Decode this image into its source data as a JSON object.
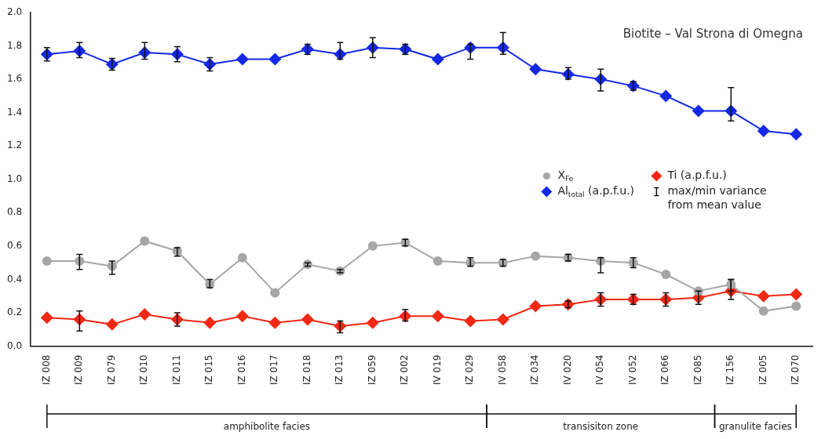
{
  "chart_data": {
    "type": "line",
    "title": "Biotite – Val Strona di Omegna",
    "categories": [
      "IZ 008",
      "IZ 009",
      "IZ 079",
      "IZ 010",
      "IZ 011",
      "IZ 015",
      "IZ 016",
      "IZ 017",
      "IZ 018",
      "IZ 013",
      "IZ 059",
      "IZ 002",
      "IV 019",
      "IZ 029",
      "IV 058",
      "IZ 034",
      "IV 020",
      "IV 054",
      "IV 052",
      "IZ 066",
      "IZ 085",
      "IZ 156",
      "IZ 005",
      "IZ 070"
    ],
    "series": [
      {
        "name": "X$_{Fe}$",
        "color": "#a6a6a6",
        "marker": "circle",
        "values": [
          0.51,
          0.51,
          0.48,
          0.63,
          0.57,
          0.37,
          0.53,
          0.32,
          0.49,
          0.45,
          0.6,
          0.62,
          0.51,
          0.5,
          0.5,
          0.54,
          0.53,
          0.51,
          0.5,
          0.43,
          0.33,
          0.37,
          0.21,
          0.24
        ],
        "errors": [
          null,
          [
            0.46,
            0.55
          ],
          [
            0.43,
            0.51
          ],
          null,
          [
            0.54,
            0.59
          ],
          [
            0.35,
            0.4
          ],
          null,
          null,
          0.01,
          0.01,
          null,
          [
            0.6,
            0.64
          ],
          null,
          [
            0.48,
            0.53
          ],
          0.02,
          null,
          [
            0.51,
            0.55
          ],
          [
            0.44,
            0.53
          ],
          [
            0.47,
            0.53
          ],
          null,
          null,
          [
            0.33,
            0.4
          ],
          null,
          null
        ]
      },
      {
        "name": "Al$_{total}$ (a.p.f.u.)",
        "color": "#1428e6",
        "marker": "diamond",
        "values": [
          1.75,
          1.77,
          1.69,
          1.76,
          1.75,
          1.69,
          1.72,
          1.72,
          1.78,
          1.75,
          1.79,
          1.78,
          1.72,
          1.79,
          1.79,
          1.66,
          1.63,
          1.6,
          1.56,
          1.5,
          1.41,
          1.41,
          1.29,
          1.27
        ],
        "errors": [
          0.04,
          [
            1.73,
            1.82
          ],
          0.035,
          [
            1.72,
            1.82
          ],
          0.045,
          0.04,
          null,
          null,
          0.03,
          [
            1.72,
            1.82
          ],
          [
            1.73,
            1.85
          ],
          0.03,
          null,
          [
            1.72,
            1.81
          ],
          [
            1.75,
            1.88
          ],
          null,
          [
            1.6,
            1.67
          ],
          [
            1.53,
            1.66
          ],
          0.025,
          null,
          null,
          [
            1.35,
            1.55
          ],
          null,
          null
        ]
      },
      {
        "name": "Ti (a.p.f.u.)",
        "color": "#f02814",
        "marker": "diamond",
        "values": [
          0.17,
          0.16,
          0.13,
          0.19,
          0.16,
          0.14,
          0.18,
          0.14,
          0.16,
          0.12,
          0.14,
          0.18,
          0.18,
          0.15,
          0.16,
          0.24,
          0.25,
          0.28,
          0.28,
          0.28,
          0.29,
          0.33,
          0.3,
          0.31
        ],
        "errors": [
          null,
          [
            0.09,
            0.21
          ],
          null,
          null,
          [
            0.12,
            0.2
          ],
          null,
          null,
          null,
          null,
          [
            0.08,
            0.15
          ],
          null,
          [
            0.15,
            0.22
          ],
          null,
          null,
          null,
          null,
          0.02,
          [
            0.24,
            0.32
          ],
          [
            0.25,
            0.31
          ],
          [
            0.24,
            0.32
          ],
          [
            0.25,
            0.33
          ],
          [
            0.28,
            0.4
          ],
          null,
          null
        ]
      }
    ],
    "ylim": [
      0,
      2
    ],
    "yticks": [
      {
        "value": 0,
        "label": "0.0"
      },
      {
        "value": 0.2,
        "label": "0.2"
      },
      {
        "value": 0.4,
        "label": "0.4"
      },
      {
        "value": 0.6,
        "label": "0.6"
      },
      {
        "value": 0.8,
        "label": "0.8"
      },
      {
        "value": 1,
        "label": "1.0"
      },
      {
        "value": 1.2,
        "label": "1.2"
      },
      {
        "value": 1.4,
        "label": "1.4"
      },
      {
        "value": 1.6,
        "label": "1.6"
      },
      {
        "value": 1.8,
        "label": "1.8"
      },
      {
        "value": 2,
        "label": "2.0"
      }
    ],
    "annotations": [
      "max/min variance from mean value",
      "amphibolite facies",
      "transisiton zone",
      "granulite facies"
    ],
    "legend": "right",
    "grid": false
  }
}
